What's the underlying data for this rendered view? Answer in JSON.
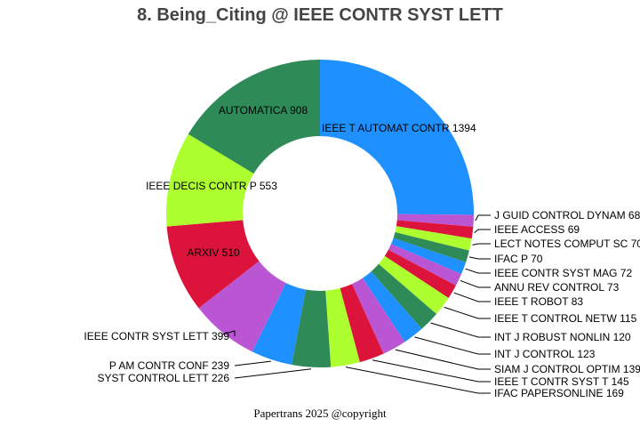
{
  "title": "8. Being_Citing @ IEEE CONTR SYST LETT",
  "footer": "Papertrans 2025 @copyright",
  "chart_data": {
    "type": "pie",
    "donut": true,
    "title": "8. Being_Citing @ IEEE CONTR SYST LETT",
    "direction": "clockwise from top",
    "categories": [
      "IEEE T AUTOMAT CONTR",
      "J GUID CONTROL DYNAM",
      "IEEE ACCESS",
      "LECT NOTES COMPUT SC",
      "IFAC P",
      "IEEE CONTR SYST MAG",
      "ANNU REV CONTROL",
      "IEEE T ROBOT",
      "IEEE T CONTROL NETW",
      "INT J ROBUST NONLIN",
      "INT J CONTROL",
      "SIAM J CONTROL OPTIM",
      "IEEE T CONTR SYST T",
      "IFAC PAPERSONLINE",
      "SYST CONTROL LETT",
      "P AM CONTR CONF",
      "IEEE CONTR SYST LETT",
      "ARXIV",
      "IEEE DECIS CONTR P",
      "AUTOMATICA"
    ],
    "values": [
      1394,
      68,
      69,
      70,
      70,
      72,
      73,
      83,
      115,
      120,
      123,
      139,
      145,
      169,
      226,
      239,
      399,
      510,
      553,
      908
    ],
    "colors": [
      "#1e90ff",
      "#ba55d3",
      "#dc143c",
      "#adff2f",
      "#2e8b57",
      "#1e90ff",
      "#ba55d3",
      "#dc143c",
      "#adff2f",
      "#2e8b57",
      "#1e90ff",
      "#ba55d3",
      "#dc143c",
      "#adff2f",
      "#2e8b57",
      "#1e90ff",
      "#ba55d3",
      "#dc143c",
      "#adff2f",
      "#2e8b57"
    ],
    "legend": "none (labels on slices and leader lines)"
  }
}
